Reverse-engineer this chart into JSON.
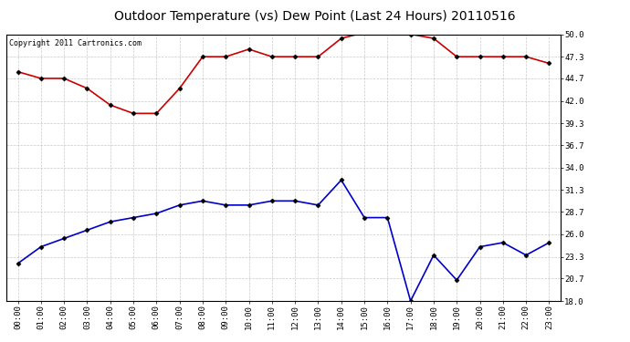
{
  "title": "Outdoor Temperature (vs) Dew Point (Last 24 Hours) 20110516",
  "copyright_text": "Copyright 2011 Cartronics.com",
  "x_labels": [
    "00:00",
    "01:00",
    "02:00",
    "03:00",
    "04:00",
    "05:00",
    "06:00",
    "07:00",
    "08:00",
    "09:00",
    "10:00",
    "11:00",
    "12:00",
    "13:00",
    "14:00",
    "15:00",
    "16:00",
    "17:00",
    "18:00",
    "19:00",
    "20:00",
    "21:00",
    "22:00",
    "23:00"
  ],
  "temp_data": [
    45.5,
    44.7,
    44.7,
    43.5,
    41.5,
    40.5,
    40.5,
    43.5,
    47.3,
    47.3,
    48.2,
    47.3,
    47.3,
    47.3,
    49.5,
    50.2,
    50.5,
    50.0,
    49.5,
    47.3,
    47.3,
    47.3,
    47.3,
    46.5
  ],
  "dew_data": [
    22.5,
    24.5,
    25.5,
    26.5,
    27.5,
    28.0,
    28.5,
    29.5,
    30.0,
    29.5,
    29.5,
    30.0,
    30.0,
    29.5,
    32.5,
    28.0,
    28.0,
    18.0,
    23.5,
    20.5,
    24.5,
    25.0,
    23.5,
    25.0
  ],
  "temp_color": "#cc0000",
  "dew_color": "#0000cc",
  "bg_color": "#ffffff",
  "plot_bg_color": "#ffffff",
  "grid_color": "#bbbbbb",
  "ylim_min": 18.0,
  "ylim_max": 50.0,
  "yticks": [
    18.0,
    20.7,
    23.3,
    26.0,
    28.7,
    31.3,
    34.0,
    36.7,
    39.3,
    42.0,
    44.7,
    47.3,
    50.0
  ],
  "marker": "D",
  "marker_size": 2.5,
  "linewidth": 1.2,
  "title_fontsize": 10,
  "tick_fontsize": 6.5,
  "copyright_fontsize": 6
}
